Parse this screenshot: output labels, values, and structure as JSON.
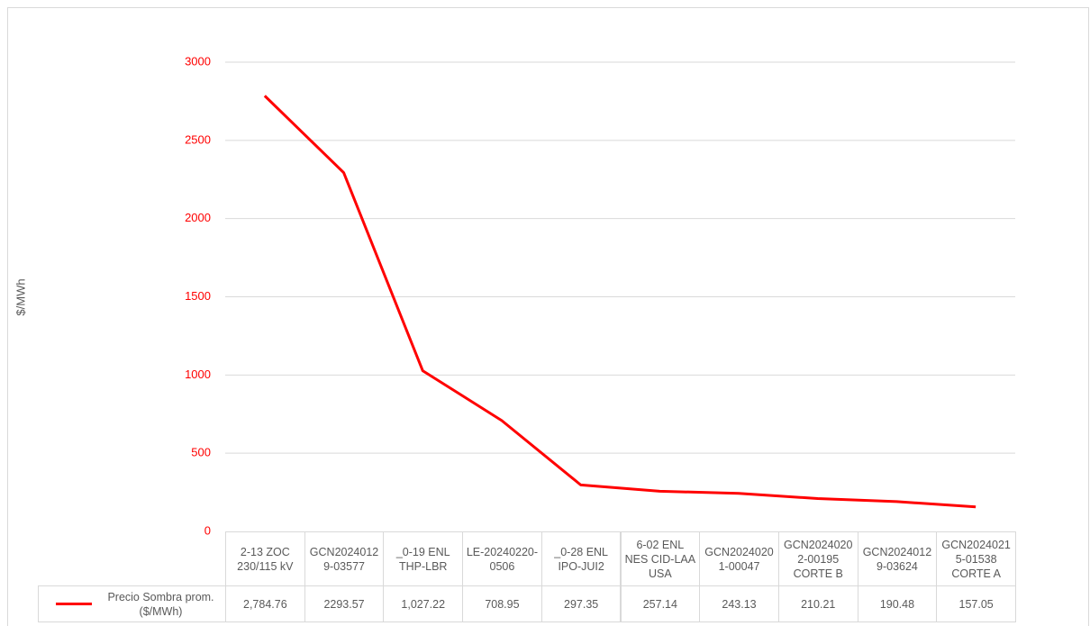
{
  "chart_data": {
    "type": "line",
    "y_label": "$/MWh",
    "categories": [
      "2-13 ZOC 230/115 kV",
      "GCN20240129-03577",
      "_0-19 ENL THP-LBR",
      "LE-20240220-0506",
      "_0-28 ENL IPO-JUI2",
      "6-02 ENL NES CID-LAA USA",
      "GCN20240201-00047",
      "GCN20240202-00195 CORTE B",
      "GCN20240129-03624",
      "GCN20240215-01538 CORTE A"
    ],
    "series": [
      {
        "name": "Precio Sombra prom. ($/MWh)",
        "color": "#ff0000",
        "values": [
          2784.76,
          2293.57,
          1027.22,
          708.95,
          297.35,
          257.14,
          243.13,
          210.21,
          190.48,
          157.05
        ],
        "value_labels": [
          "2,784.76",
          "2293.57",
          "1,027.22",
          "708.95",
          "297.35",
          "257.14",
          "243.13",
          "210.21",
          "190.48",
          "157.05"
        ]
      }
    ],
    "ylim": [
      0,
      3000
    ],
    "yticks": [
      0,
      500,
      1000,
      1500,
      2000,
      2500,
      3000
    ],
    "grid": true,
    "tick_color": "#ff0000",
    "legend": "data-table"
  }
}
